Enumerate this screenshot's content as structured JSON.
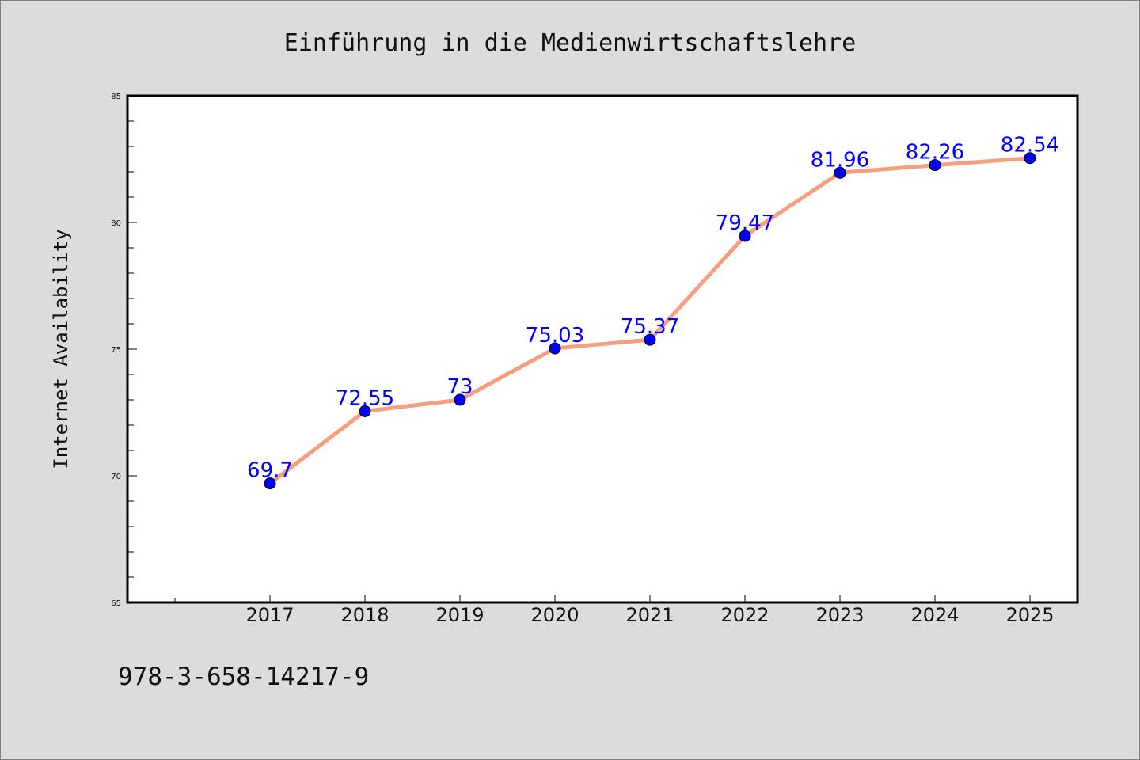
{
  "colors": {
    "background": "#dcdcdc",
    "plot_background": "#ffffff",
    "line": "#f4a07f",
    "marker": "#0000ff",
    "marker_edge": "#000000",
    "data_label": "#0000ff",
    "text": "#111111"
  },
  "footer": {
    "isbn": "978-3-658-14217-9"
  },
  "chart_data": {
    "type": "line",
    "title": "Einführung in die Medienwirtschaftslehre",
    "xlabel": "",
    "ylabel": "Internet Availability",
    "categories": [
      "2017",
      "2018",
      "2019",
      "2020",
      "2021",
      "2022",
      "2023",
      "2024",
      "2025"
    ],
    "series": [
      {
        "values": [
          69.7,
          72.55,
          73,
          75.03,
          75.37,
          79.47,
          81.96,
          82.26,
          82.54
        ],
        "labels": [
          "69.7",
          "72.55",
          "73",
          "75.03",
          "75.37",
          "79.47",
          "81.96",
          "82.26",
          "82.54"
        ]
      }
    ],
    "ylim": [
      65,
      85
    ],
    "yticks": [
      65,
      70,
      75,
      80,
      85
    ],
    "grid": false,
    "legend": "none",
    "markers": true
  }
}
